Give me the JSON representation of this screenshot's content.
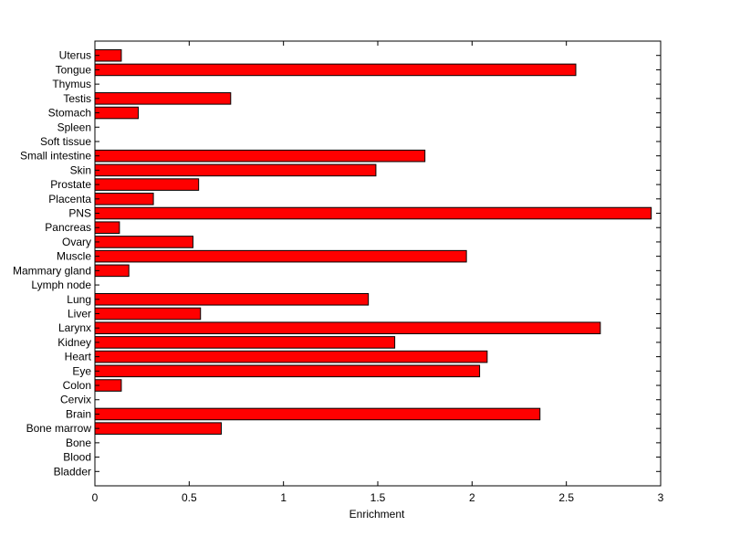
{
  "chart_data": {
    "type": "bar",
    "orientation": "horizontal",
    "xlabel": "Enrichment",
    "ylabel": "",
    "xlim": [
      0,
      3
    ],
    "xticks": [
      "0",
      "0.5",
      "1",
      "1.5",
      "2",
      "2.5",
      "3"
    ],
    "grid": false,
    "categories": [
      "Bladder",
      "Blood",
      "Bone",
      "Bone marrow",
      "Brain",
      "Cervix",
      "Colon",
      "Eye",
      "Heart",
      "Kidney",
      "Larynx",
      "Liver",
      "Lung",
      "Lymph node",
      "Mammary gland",
      "Muscle",
      "Ovary",
      "Pancreas",
      "PNS",
      "Placenta",
      "Prostate",
      "Skin",
      "Small intestine",
      "Soft tissue",
      "Spleen",
      "Stomach",
      "Testis",
      "Thymus",
      "Tongue",
      "Uterus"
    ],
    "values": [
      0,
      0,
      0,
      0.67,
      2.36,
      0,
      0.14,
      2.04,
      2.08,
      1.59,
      2.68,
      0.56,
      1.45,
      0,
      0.18,
      1.97,
      0.52,
      0.13,
      2.95,
      0.31,
      0.55,
      1.49,
      1.75,
      0,
      0,
      0.23,
      0.72,
      0,
      2.55,
      0.14
    ],
    "colors": {
      "bar_fill": "#ff0000",
      "bar_stroke": "#000000",
      "axis": "#000000"
    }
  }
}
